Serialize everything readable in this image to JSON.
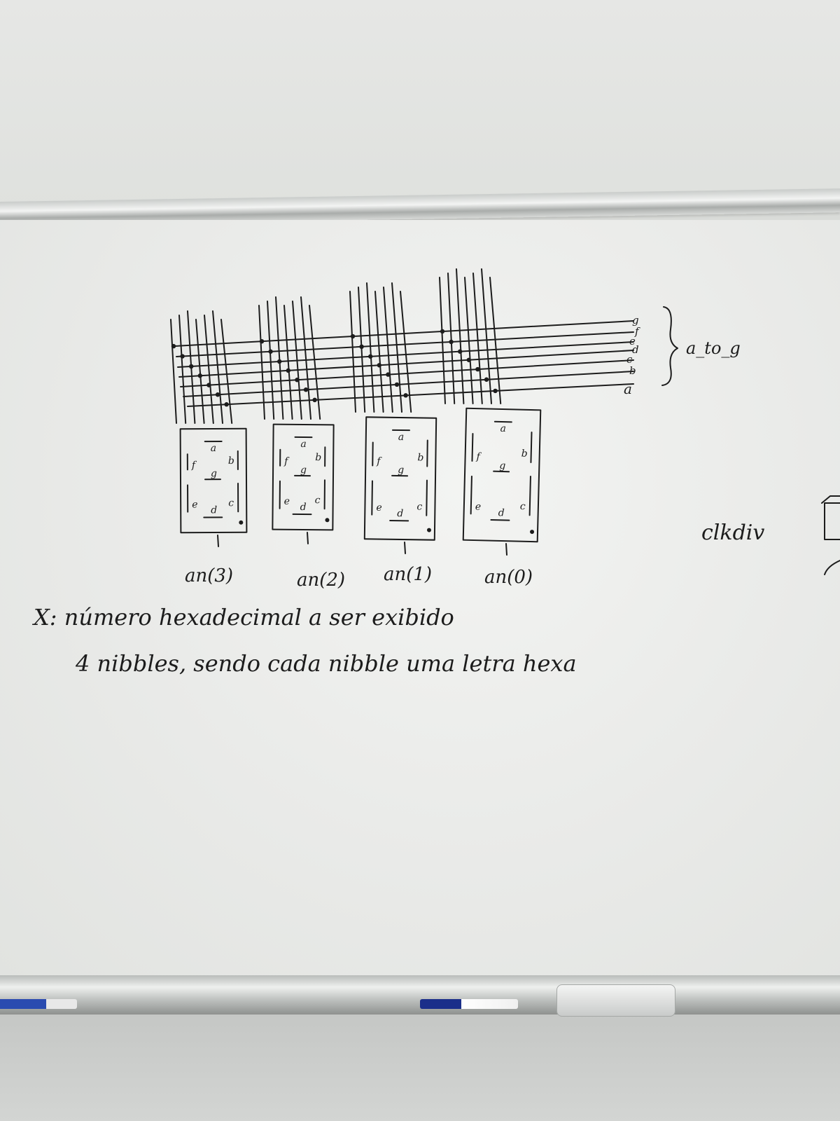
{
  "bus": {
    "label": "a_to_g",
    "segments": [
      "a",
      "b",
      "c",
      "d",
      "e",
      "f",
      "g"
    ]
  },
  "clock_label": "clkdiv",
  "digits": [
    {
      "anode": "an(3)",
      "seg_labels": {
        "a": "a",
        "b": "b",
        "c": "c",
        "d": "d",
        "e": "e",
        "f": "f",
        "g": "g"
      }
    },
    {
      "anode": "an(2)",
      "seg_labels": {
        "a": "a",
        "b": "b",
        "c": "c",
        "d": "d",
        "e": "e",
        "f": "f",
        "g": "g"
      }
    },
    {
      "anode": "an(1)",
      "seg_labels": {
        "a": "a",
        "b": "b",
        "c": "c",
        "d": "d",
        "e": "e",
        "f": "f",
        "g": "g"
      }
    },
    {
      "anode": "an(0)",
      "seg_labels": {
        "a": "a",
        "b": "b",
        "c": "c",
        "d": "d",
        "e": "e",
        "f": "f",
        "g": "g"
      }
    }
  ],
  "notes": {
    "line1": "X: número hexadecimal a ser exibido",
    "line2": "4 nibbles, sendo cada nibble uma letra hexa"
  },
  "colors": {
    "ink": "#1c1c1c",
    "board": "#eeefed",
    "rail": "#c9ccca"
  }
}
